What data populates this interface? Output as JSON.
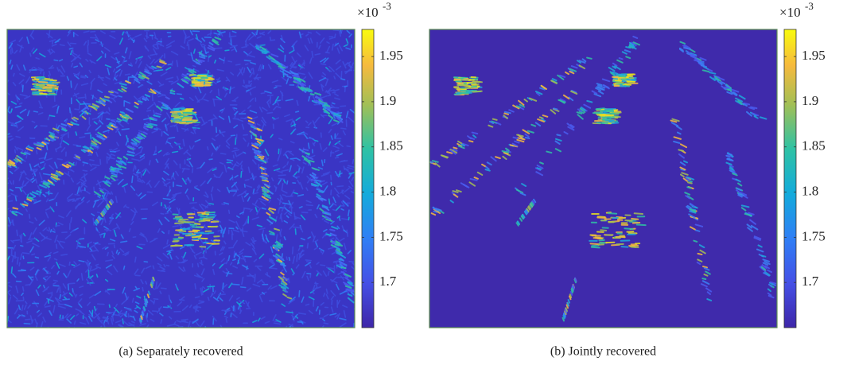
{
  "chart_data": [
    {
      "type": "heatmap",
      "caption": "(a) Separately recovered",
      "colorbar": {
        "lim": [
          1.65,
          1.98
        ],
        "ticks": [
          1.7,
          1.75,
          1.8,
          1.85,
          1.9,
          1.95
        ],
        "exponent_base": "×10",
        "exponent": "-3"
      }
    },
    {
      "type": "heatmap",
      "caption": "(b) Jointly recovered",
      "colorbar": {
        "lim": [
          1.65,
          1.98
        ],
        "ticks": [
          1.7,
          1.75,
          1.8,
          1.85,
          1.9,
          1.95
        ],
        "exponent_base": "×10",
        "exponent": "-3"
      }
    }
  ]
}
